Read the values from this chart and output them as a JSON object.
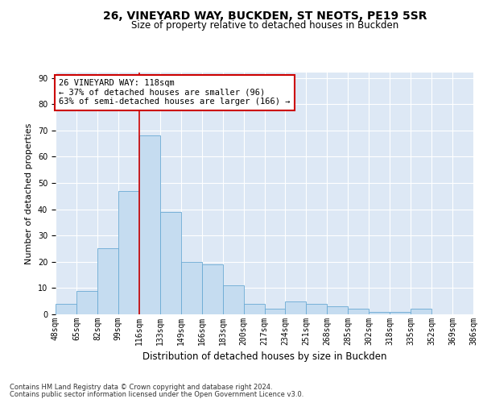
{
  "title1": "26, VINEYARD WAY, BUCKDEN, ST NEOTS, PE19 5SR",
  "title2": "Size of property relative to detached houses in Buckden",
  "xlabel": "Distribution of detached houses by size in Buckden",
  "ylabel": "Number of detached properties",
  "bar_values": [
    4,
    9,
    25,
    47,
    68,
    39,
    20,
    19,
    11,
    4,
    2,
    5,
    4,
    3,
    2,
    1,
    1,
    2,
    0,
    0
  ],
  "bar_labels": [
    "48sqm",
    "65sqm",
    "82sqm",
    "99sqm",
    "116sqm",
    "133sqm",
    "149sqm",
    "166sqm",
    "183sqm",
    "200sqm",
    "217sqm",
    "234sqm",
    "251sqm",
    "268sqm",
    "285sqm",
    "302sqm",
    "318sqm",
    "335sqm",
    "352sqm",
    "369sqm",
    "386sqm"
  ],
  "bar_color": "#c5dcf0",
  "bar_edge_color": "#6aaad4",
  "vline_x": 4,
  "vline_color": "#cc0000",
  "annotation_text": "26 VINEYARD WAY: 118sqm\n← 37% of detached houses are smaller (96)\n63% of semi-detached houses are larger (166) →",
  "ann_facecolor": "white",
  "ann_edgecolor": "#cc0000",
  "ylim": [
    0,
    92
  ],
  "yticks": [
    0,
    10,
    20,
    30,
    40,
    50,
    60,
    70,
    80,
    90
  ],
  "bg_color": "#dde8f5",
  "grid_color": "white",
  "title1_fontsize": 10,
  "title2_fontsize": 8.5,
  "ylabel_fontsize": 8,
  "xlabel_fontsize": 8.5,
  "tick_fontsize": 7,
  "ann_fontsize": 7.5,
  "footer1": "Contains HM Land Registry data © Crown copyright and database right 2024.",
  "footer2": "Contains public sector information licensed under the Open Government Licence v3.0.",
  "footer_fontsize": 6
}
